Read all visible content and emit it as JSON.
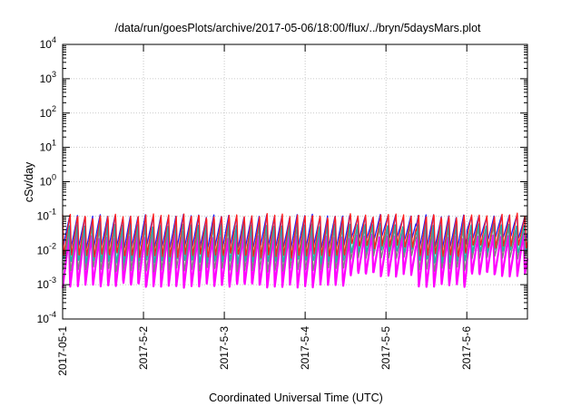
{
  "chart_data": {
    "type": "line",
    "title": "/data/run/goesPlots/archive/2017-05-06/18:00/flux/../bryn/5daysMars.plot",
    "xlabel": "Coordinated Universal Time (UTC)",
    "ylabel": "cSv/day",
    "y_scale": "log",
    "ylim": [
      0.0001,
      10000
    ],
    "xlim": [
      "2017-05-01T00:00",
      "2017-05-06T18:00"
    ],
    "x_ticks": [
      {
        "label": "2017-05-1",
        "date": "2017-05-01"
      },
      {
        "label": "2017-5-2",
        "date": "2017-05-02"
      },
      {
        "label": "2017-5-3",
        "date": "2017-05-03"
      },
      {
        "label": "2017-5-4",
        "date": "2017-05-04"
      },
      {
        "label": "2017-5-5",
        "date": "2017-05-05"
      },
      {
        "label": "2017-5-6",
        "date": "2017-05-06"
      }
    ],
    "y_ticks": [
      {
        "base": "10",
        "exp": "-4",
        "value": 0.0001
      },
      {
        "base": "10",
        "exp": "-3",
        "value": 0.001
      },
      {
        "base": "10",
        "exp": "-2",
        "value": 0.01
      },
      {
        "base": "10",
        "exp": "-1",
        "value": 0.1
      },
      {
        "base": "10",
        "exp": "0",
        "value": 1
      },
      {
        "base": "10",
        "exp": "1",
        "value": 10
      },
      {
        "base": "10",
        "exp": "2",
        "value": 100
      },
      {
        "base": "10",
        "exp": "3",
        "value": 1000
      },
      {
        "base": "10",
        "exp": "4",
        "value": 10000
      }
    ],
    "grid": true,
    "legend": "none",
    "oscillation_period_hours": 2.25,
    "series": [
      {
        "color": "#ff2020",
        "peak": 0.11,
        "trough": 0.0065,
        "trough_late": 0.0125
      },
      {
        "color": "#2020ff",
        "peak": 0.105,
        "trough": 0.012,
        "trough_late": 0.022
      },
      {
        "color": "#20b2aa",
        "peak": 0.06,
        "trough": 0.0045,
        "trough_late": 0.009
      },
      {
        "color": "#808080",
        "peak": 0.045,
        "trough": 0.0025,
        "trough_late": 0.006
      },
      {
        "color": "#ff00ff",
        "peak": 0.028,
        "trough": 0.00085,
        "trough_late": 0.0018
      }
    ]
  }
}
